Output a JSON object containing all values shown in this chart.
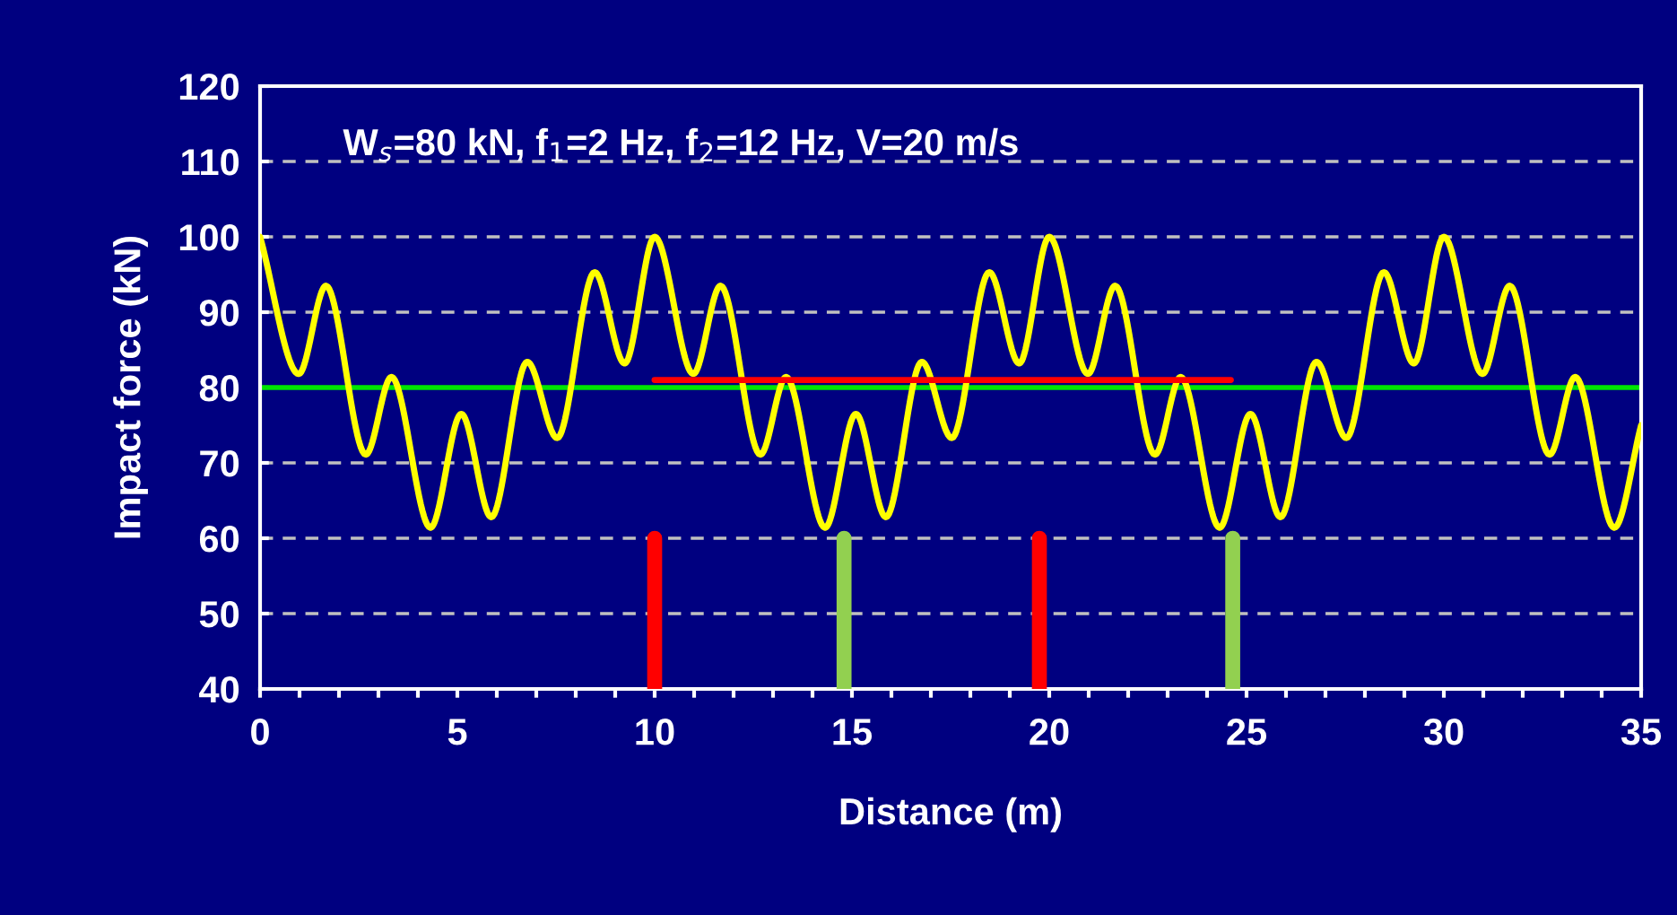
{
  "chart_data": {
    "type": "line",
    "xlabel": "Distance (m)",
    "ylabel": "Impact force (kN)",
    "annotations": [
      "W$_{s}$=80 kN, f$_{1}$=2 Hz, f$_{2}$=12 Hz, V=20 m/s"
    ],
    "xlim": [
      0,
      35
    ],
    "ylim": [
      40,
      120
    ],
    "xticks": [
      0,
      {
        "value": 1,
        "label": null
      },
      {
        "value": 2,
        "label": null
      },
      {
        "value": 3,
        "label": null
      },
      {
        "value": 4,
        "label": null
      },
      5,
      {
        "value": 6,
        "label": null
      },
      {
        "value": 7,
        "label": null
      },
      {
        "value": 8,
        "label": null
      },
      {
        "value": 9,
        "label": null
      },
      10,
      {
        "value": 11,
        "label": null
      },
      {
        "value": 12,
        "label": null
      },
      {
        "value": 13,
        "label": null
      },
      {
        "value": 14,
        "label": null
      },
      15,
      {
        "value": 16,
        "label": null
      },
      {
        "value": 17,
        "label": null
      },
      {
        "value": 18,
        "label": null
      },
      {
        "value": 19,
        "label": null
      },
      20,
      {
        "value": 21,
        "label": null
      },
      {
        "value": 22,
        "label": null
      },
      {
        "value": 23,
        "label": null
      },
      {
        "value": 24,
        "label": null
      },
      25,
      {
        "value": 26,
        "label": null
      },
      {
        "value": 27,
        "label": null
      },
      {
        "value": 28,
        "label": null
      },
      {
        "value": 29,
        "label": null
      },
      30,
      {
        "value": 31,
        "label": null
      },
      {
        "value": 32,
        "label": null
      },
      {
        "value": 33,
        "label": null
      },
      {
        "value": 34,
        "label": null
      },
      35
    ],
    "yticks": [
      40,
      50,
      60,
      70,
      80,
      90,
      100,
      110,
      120
    ],
    "grid": "y",
    "legend": false,
    "marker": "none",
    "ref_lines": [
      {
        "axis": "y",
        "value": 80,
        "color": "#00e600",
        "line_style": "solid"
      }
    ],
    "series": [
      {
        "color": "#ffff00",
        "line_style": "solid",
        "x": [
          0,
          0.98,
          1.67,
          2.68,
          3.33,
          4.32,
          5.1,
          5.86,
          6.77,
          7.53,
          8.48,
          9.24,
          10,
          10.98,
          11.67,
          12.68,
          13.33,
          14.32,
          15.1,
          15.86,
          16.77,
          17.53,
          18.48,
          19.24,
          20,
          20.98,
          21.67,
          22.68,
          23.33,
          24.32,
          25.1,
          25.86,
          26.77,
          27.53,
          28.48,
          29.24,
          30,
          30.98,
          31.67,
          32.68,
          33.33,
          34.32,
          35
        ],
        "values": [
          100,
          81.8,
          93.5,
          71.1,
          81.4,
          61.4,
          76.5,
          62.8,
          83.4,
          73.3,
          95.3,
          83.2,
          100,
          81.8,
          93.5,
          71.1,
          81.4,
          61.4,
          76.5,
          62.8,
          83.4,
          73.3,
          95.3,
          83.2,
          100,
          81.8,
          93.5,
          71.1,
          81.4,
          61.4,
          76.5,
          62.8,
          83.4,
          73.3,
          95.3,
          83.2,
          100,
          81.8,
          93.5,
          71.1,
          81.4,
          61.4,
          75
        ]
      },
      {
        "color": "#ff0000",
        "line_style": "solid",
        "x": [
          10,
          24.6
        ],
        "values": [
          81,
          81
        ]
      },
      {
        "color": "#ff0000",
        "line_style": "solid",
        "x": [
          10,
          10
        ],
        "values": [
          40,
          60
        ]
      },
      {
        "color": "#ff0000",
        "line_style": "solid",
        "x": [
          19.75,
          19.75
        ],
        "values": [
          40,
          60
        ]
      },
      {
        "color": "#92d050",
        "line_style": "solid",
        "x": [
          14.8,
          14.8
        ],
        "values": [
          40,
          60
        ]
      },
      {
        "color": "#92d050",
        "line_style": "solid",
        "x": [
          24.65,
          24.65
        ],
        "values": [
          40,
          60
        ]
      }
    ]
  }
}
